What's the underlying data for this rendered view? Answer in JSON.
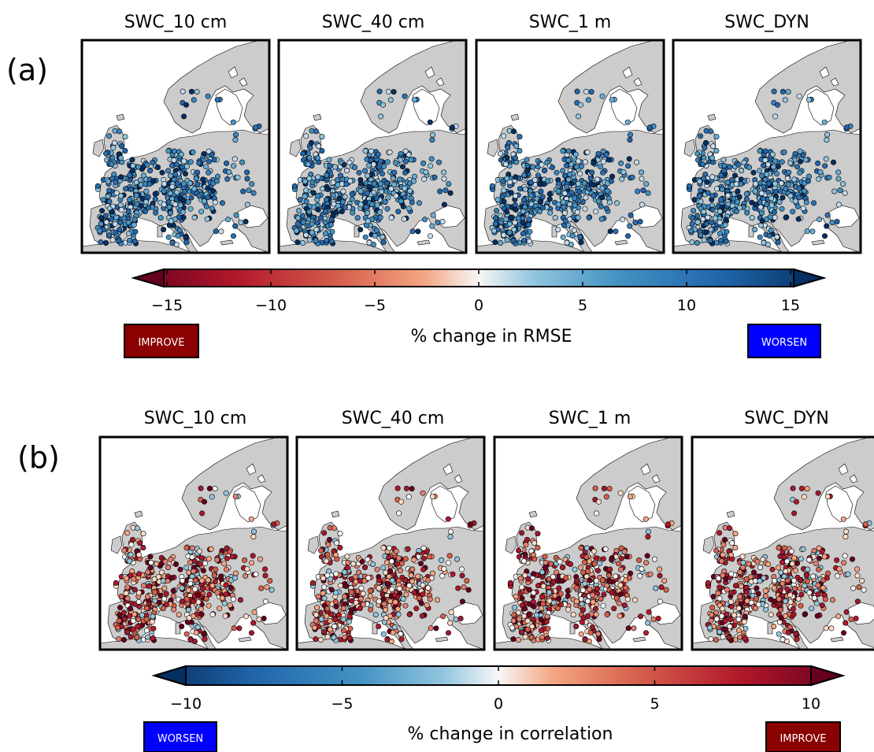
{
  "colors": {
    "land": "#cccccc",
    "sea": "#ffffff",
    "improve": "#8b0000",
    "worsen": "#0000ff"
  },
  "panels": [
    {
      "panel_label": "(a)",
      "titles": [
        "SWC_10 cm",
        "SWC_40 cm",
        "SWC_1 m",
        "SWC_DYN"
      ],
      "colorbar": {
        "label": "% change in RMSE",
        "ticks": [
          "−15",
          "−10",
          "−5",
          "0",
          "5",
          "10",
          "15"
        ],
        "range": [
          -15,
          15
        ],
        "colormap": "RdBu reversed (low = dark red, high = dark blue)",
        "extend": "both"
      },
      "badge_left": "IMPROVE",
      "badge_right": "WORSEN",
      "dominant_marker_color": "blue"
    },
    {
      "panel_label": "(b)",
      "titles": [
        "SWC_10 cm",
        "SWC_40 cm",
        "SWC_1 m",
        "SWC_DYN"
      ],
      "colorbar": {
        "label": "% change in correlation",
        "ticks": [
          "−10",
          "−5",
          "0",
          "5",
          "10"
        ],
        "range": [
          -10,
          10
        ],
        "colormap": "RdBu (low = dark blue, high = dark red)",
        "extend": "both"
      },
      "badge_left": "WORSEN",
      "badge_right": "IMPROVE",
      "dominant_marker_color": "red"
    }
  ]
}
